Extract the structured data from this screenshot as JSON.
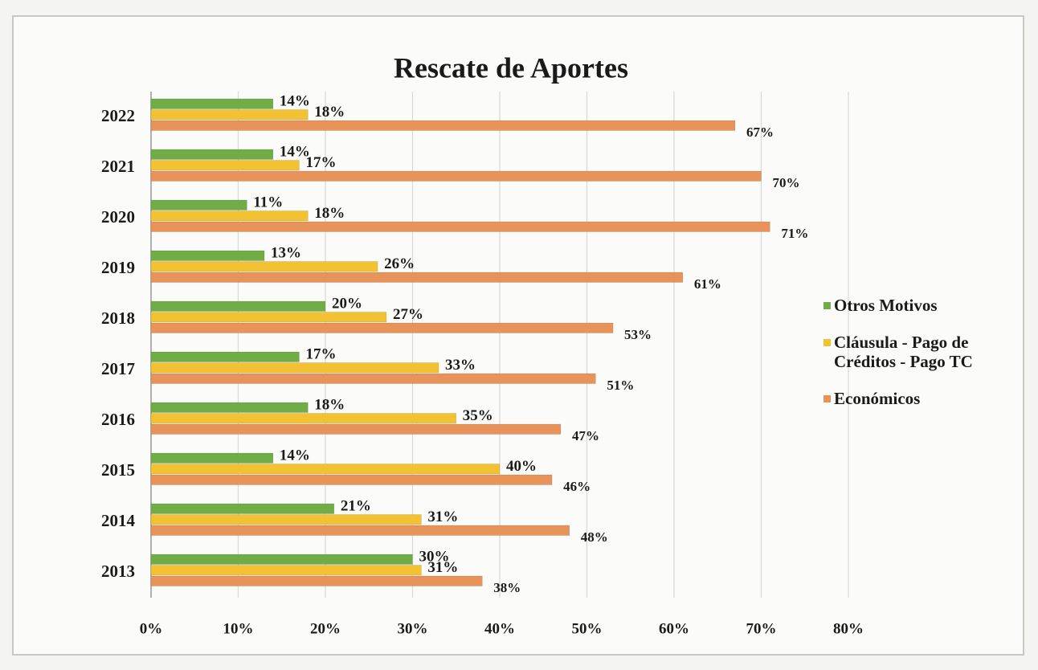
{
  "chart_data": {
    "type": "hbar",
    "title": "Rescate de Aportes",
    "categories": [
      "2022",
      "2021",
      "2020",
      "2019",
      "2018",
      "2017",
      "2016",
      "2015",
      "2014",
      "2013"
    ],
    "series": [
      {
        "name": "Otros Motivos",
        "color": "#70ad47",
        "values": [
          14,
          14,
          11,
          13,
          20,
          17,
          18,
          14,
          21,
          30
        ],
        "value_labels": [
          "14%",
          "14%",
          "11%",
          "13%",
          "20%",
          "17%",
          "18%",
          "14%",
          "21%",
          "30%"
        ]
      },
      {
        "name": "Cláusula - Pago de Créditos - Pago TC",
        "color": "#f2c232",
        "values": [
          18,
          17,
          18,
          26,
          27,
          33,
          35,
          40,
          31,
          31
        ],
        "value_labels": [
          "18%",
          "17%",
          "18%",
          "26%",
          "27%",
          "33%",
          "35%",
          "40%",
          "31%",
          "31%"
        ]
      },
      {
        "name": "Económicos",
        "color": "#e8935a",
        "values": [
          67,
          70,
          71,
          61,
          53,
          51,
          47,
          46,
          48,
          38
        ],
        "value_labels": [
          "67%",
          "70%",
          "71%",
          "61%",
          "53%",
          "51%",
          "47%",
          "46%",
          "48%",
          "38%"
        ]
      }
    ],
    "xlim": [
      0,
      80
    ],
    "xticks": [
      {
        "value": 0,
        "label": "0%"
      },
      {
        "value": 10,
        "label": "10%"
      },
      {
        "value": 20,
        "label": "20%"
      },
      {
        "value": 30,
        "label": "30%"
      },
      {
        "value": 40,
        "label": "40%"
      },
      {
        "value": 50,
        "label": "50%"
      },
      {
        "value": 60,
        "label": "60%"
      },
      {
        "value": 70,
        "label": "70%"
      },
      {
        "value": 80,
        "label": "80%"
      }
    ],
    "grid": true
  }
}
